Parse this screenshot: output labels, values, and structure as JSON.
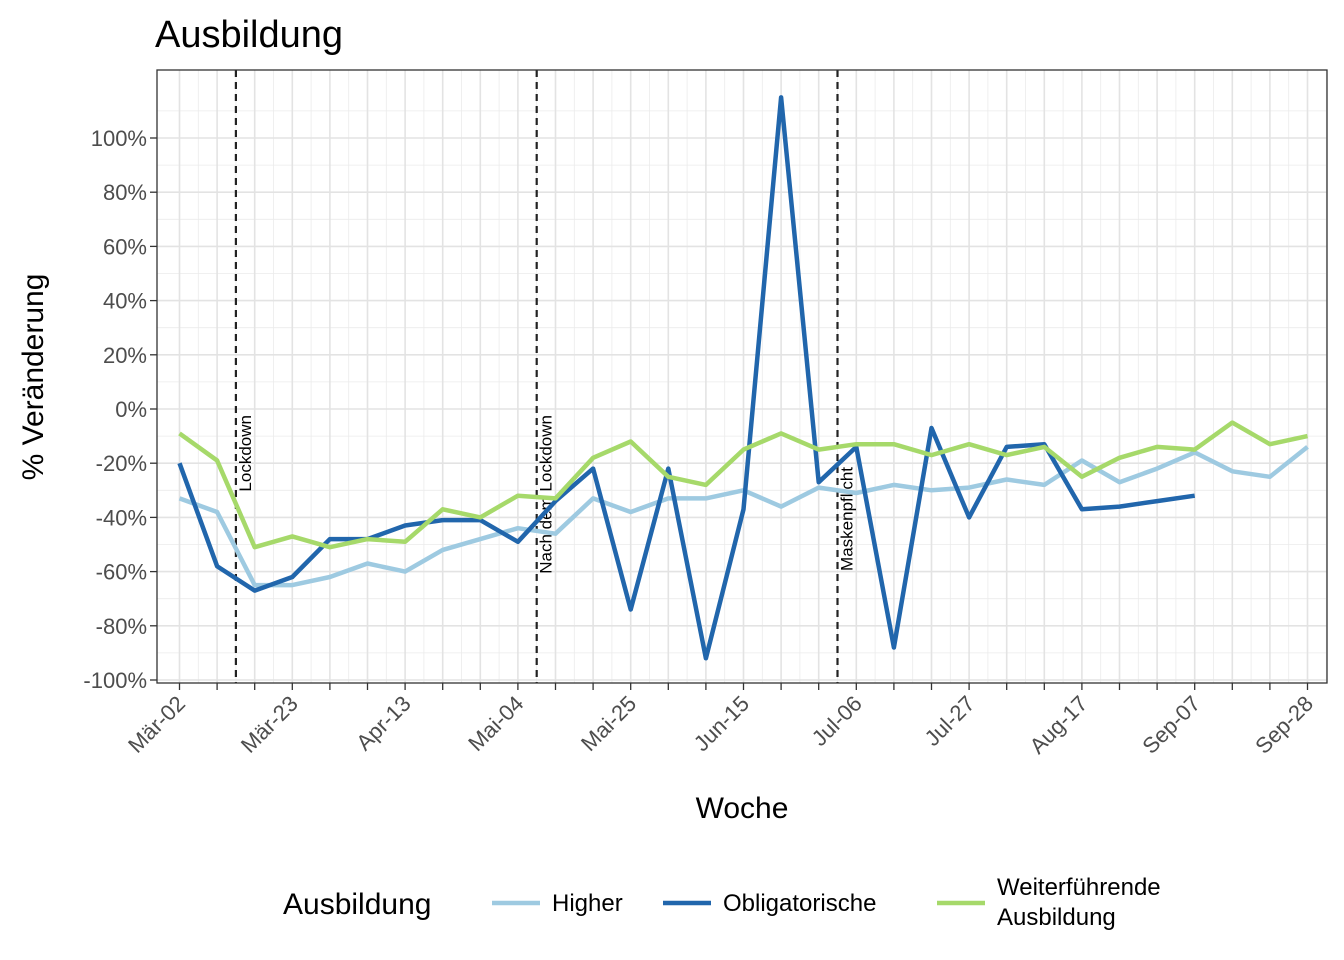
{
  "chart_data": {
    "type": "line",
    "title": "Ausbildung",
    "xlabel": "Woche",
    "ylabel": "% Veränderung",
    "ylim": [
      -100,
      120
    ],
    "yticks": [
      -100,
      -80,
      -60,
      -40,
      -20,
      0,
      20,
      40,
      60,
      80,
      100
    ],
    "ytick_labels": [
      "-100%",
      "-80%",
      "-60%",
      "-40%",
      "-20%",
      "0%",
      "20%",
      "40%",
      "60%",
      "80%",
      "100%"
    ],
    "x": [
      "Mär-02",
      "Mär-09",
      "Mär-16",
      "Mär-23",
      "Mär-30",
      "Apr-06",
      "Apr-13",
      "Apr-20",
      "Apr-27",
      "Mai-04",
      "Mai-11",
      "Mai-18",
      "Mai-25",
      "Jun-01",
      "Jun-08",
      "Jun-15",
      "Jun-22",
      "Jun-29",
      "Jul-06",
      "Jul-13",
      "Jul-20",
      "Jul-27",
      "Aug-03",
      "Aug-10",
      "Aug-17",
      "Aug-24",
      "Aug-31",
      "Sep-07",
      "Sep-14",
      "Sep-21",
      "Sep-28"
    ],
    "xtick_labels": [
      "Mär-02",
      "Mär-23",
      "Apr-13",
      "Mai-04",
      "Mai-25",
      "Jun-15",
      "Jul-06",
      "Jul-27",
      "Aug-17",
      "Sep-07",
      "Sep-28"
    ],
    "grid": true,
    "legend_position": "bottom",
    "legend_title": "Ausbildung",
    "series": [
      {
        "name": "Higher",
        "color": "#9ecae1",
        "values": [
          -33,
          -38,
          -65,
          -65,
          -62,
          -57,
          -60,
          -52,
          -48,
          -44,
          -46,
          -33,
          -38,
          -33,
          -33,
          -30,
          -36,
          -29,
          -31,
          -28,
          -30,
          -29,
          -26,
          -28,
          -19,
          -27,
          -22,
          -16,
          -23,
          -25,
          -14
        ]
      },
      {
        "name": "Obligatorische",
        "color": "#2166ac",
        "values": [
          -20,
          -58,
          -67,
          -62,
          -48,
          -48,
          -43,
          -41,
          -41,
          -49,
          -34,
          -22,
          -74,
          -22,
          -92,
          -37,
          115,
          -27,
          -14,
          -88,
          -7,
          -40,
          -14,
          -13,
          -37,
          -36,
          -34,
          -32,
          null,
          null,
          null
        ]
      },
      {
        "name": "Weiterführende Ausbildung",
        "color": "#a6d96a",
        "values": [
          -9,
          -19,
          -51,
          -47,
          -51,
          -48,
          -49,
          -37,
          -40,
          -32,
          -33,
          -18,
          -12,
          -25,
          -28,
          -15,
          -9,
          -15,
          -13,
          -13,
          -17,
          -13,
          -17,
          -14,
          -25,
          -18,
          -14,
          -15,
          -5,
          -13,
          -10
        ]
      }
    ],
    "events": [
      {
        "label": "Lockdown",
        "x": "Mär-16",
        "offset_weeks": 0.5
      },
      {
        "label": "Nach dem Lockdown",
        "x": "Mai-11",
        "offset_weeks": 0.5
      },
      {
        "label": "Maskenpflicht",
        "x": "Jul-06",
        "offset_weeks": 0.5
      }
    ]
  }
}
